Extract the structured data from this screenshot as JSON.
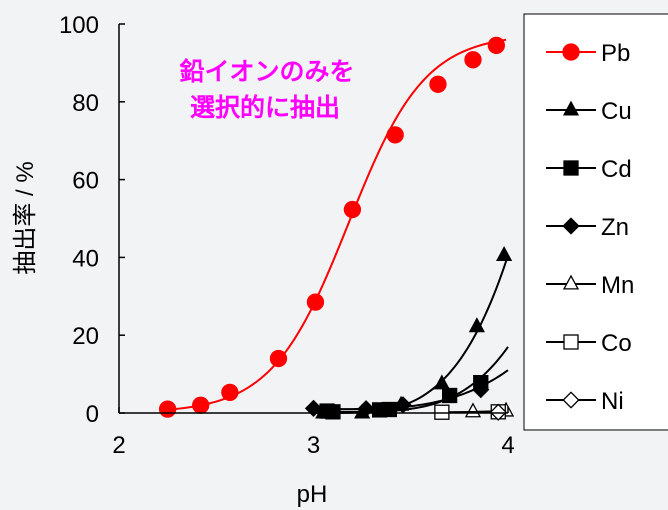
{
  "chart_data": {
    "type": "scatter",
    "xlabel": "pH",
    "ylabel": "抽出率 / %",
    "xlim": [
      2,
      4
    ],
    "ylim": [
      0,
      100
    ],
    "xticks": [
      2,
      3,
      4
    ],
    "yticks": [
      0,
      20,
      40,
      60,
      80,
      100
    ],
    "grid": false,
    "legend_position": "right",
    "annotation": [
      "鉛イオンのみを",
      "選択的に抽出"
    ],
    "annotation_color": "#ff00ff",
    "series": [
      {
        "name": "Pb",
        "marker": "circle",
        "filled": true,
        "color": "#ff0000",
        "x": [
          2.25,
          2.42,
          2.57,
          2.82,
          3.01,
          3.2,
          3.42,
          3.64,
          3.82,
          3.94
        ],
        "y": [
          1,
          2,
          5.3,
          14,
          28.5,
          52.3,
          71.5,
          84.5,
          90.8,
          94.5
        ]
      },
      {
        "name": "Cu",
        "marker": "triangle",
        "filled": true,
        "color": "#000000",
        "x": [
          3.05,
          3.25,
          3.45,
          3.66,
          3.84,
          3.98
        ],
        "y": [
          0,
          0,
          2,
          7.5,
          22.2,
          40.5
        ]
      },
      {
        "name": "Cd",
        "marker": "square",
        "filled": true,
        "color": "#000000",
        "x": [
          3.07,
          3.1,
          3.34,
          3.39,
          3.7,
          3.86
        ],
        "y": [
          0.5,
          0.3,
          0.8,
          0.9,
          4.5,
          7.8
        ]
      },
      {
        "name": "Zn",
        "marker": "diamond",
        "filled": true,
        "color": "#000000",
        "x": [
          3.0,
          3.27,
          3.46,
          3.86
        ],
        "y": [
          1.2,
          1.1,
          2.1,
          6
        ]
      },
      {
        "name": "Mn",
        "marker": "triangle",
        "filled": false,
        "color": "#000000",
        "x": [
          3.82,
          3.99
        ],
        "y": [
          0.3,
          0.5
        ]
      },
      {
        "name": "Co",
        "marker": "square",
        "filled": false,
        "color": "#000000",
        "x": [
          3.66,
          3.95
        ],
        "y": [
          0.2,
          0.3
        ]
      },
      {
        "name": "Ni",
        "marker": "diamond",
        "filled": false,
        "color": "#000000",
        "x": [
          3.95
        ],
        "y": [
          0.2
        ]
      }
    ]
  }
}
